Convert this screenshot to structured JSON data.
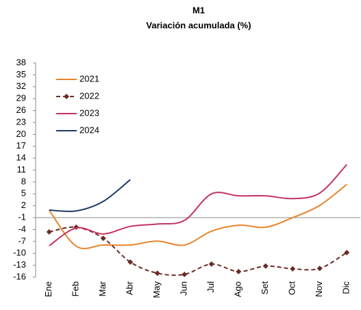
{
  "chart_data": {
    "type": "line",
    "title": "M1",
    "subtitle": "Variación acumulada (%)",
    "categories": [
      "Ene",
      "Feb",
      "Mar",
      "Abr",
      "May",
      "Jun",
      "Jul",
      "Ago",
      "Set",
      "Oct",
      "Nov",
      "Dic"
    ],
    "series": [
      {
        "name": "2021",
        "color": "#e8842a",
        "dash": false,
        "marker": false,
        "values": [
          0.9,
          -8.2,
          -7.9,
          -7.9,
          -6.9,
          -7.9,
          -4.4,
          -2.9,
          -3.4,
          -1.0,
          2.1,
          7.4
        ]
      },
      {
        "name": "2022",
        "color": "#6b2a24",
        "dash": true,
        "marker": true,
        "values": [
          -4.6,
          -3.4,
          -6.2,
          -12.2,
          -15.0,
          -15.3,
          -12.7,
          -14.6,
          -13.2,
          -13.9,
          -13.8,
          -9.8
        ]
      },
      {
        "name": "2023",
        "color": "#c4335e",
        "dash": false,
        "marker": false,
        "values": [
          -8.1,
          -3.6,
          -5.1,
          -3.2,
          -2.6,
          -1.7,
          5.0,
          4.5,
          4.5,
          3.8,
          5.2,
          12.4
        ]
      },
      {
        "name": "2024",
        "color": "#1f3a68",
        "dash": false,
        "marker": false,
        "values": [
          0.9,
          0.7,
          3.1,
          8.6,
          null,
          null,
          null,
          null,
          null,
          null,
          null,
          null
        ]
      }
    ],
    "ylim": [
      -16,
      38
    ],
    "yticks": [
      -16,
      -13,
      -10,
      -7,
      -4,
      -1,
      2,
      5,
      8,
      11,
      14,
      17,
      20,
      23,
      26,
      29,
      32,
      35,
      38
    ],
    "legend": "upper-left"
  }
}
